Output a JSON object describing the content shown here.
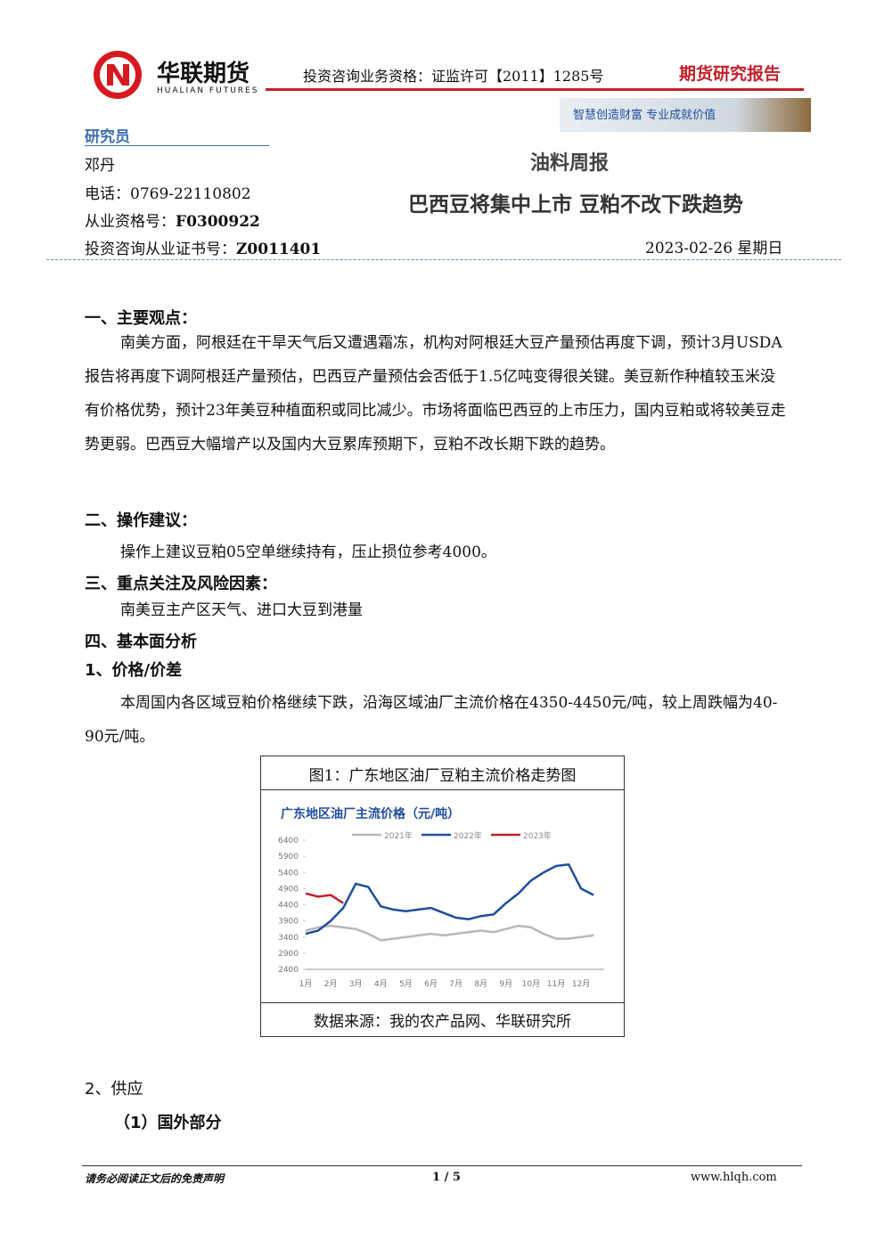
{
  "header": {
    "company": "华联期货",
    "company_en": "HUALIAN FUTURES",
    "qualification": "投资咨询业务资格：证监许可【2011】1285号",
    "report_type": "期货研究报告",
    "slogan": "智慧创造财富 专业成就价值"
  },
  "researcher": {
    "label": "研究员",
    "name": "邓丹",
    "phone": "电话：0769-22110802",
    "license_label": "从业资格号：",
    "license": "F0300922",
    "advisor_label": "投资咨询从业证书号：",
    "advisor": "Z0011401"
  },
  "report": {
    "category": "油料周报",
    "headline": "巴西豆将集中上市 豆粕不改下跌趋势",
    "date": "2023-02-26 星期日"
  },
  "sections": [
    {
      "heading": "一、主要观点：",
      "paragraphs": [
        "南美方面，阿根廷在干旱天气后又遭遇霜冻，机构对阿根廷大豆产量预估再度下调，预计3月USDA报告将再度下调阿根廷产量预估，巴西豆产量预估会否低于1.5亿吨变得很关键。美豆新作种植较玉米没有价格优势，预计23年美豆种植面积或同比减少。市场将面临巴西豆的上市压力，国内豆粕或将较美豆走势更弱。巴西豆大幅增产以及国内大豆累库预期下，豆粕不改长期下跌的趋势。"
      ]
    },
    {
      "heading": "二、操作建议：",
      "paragraphs": [
        "操作上建议豆粕05空单继续持有，压止损位参考4000。"
      ]
    },
    {
      "heading": "三、重点关注及风险因素：",
      "paragraphs": [
        "南美豆主产区天气、进口大豆到港量"
      ]
    },
    {
      "heading": "四、基本面分析",
      "paragraphs": []
    },
    {
      "heading": "1、价格/价差",
      "paragraphs": [
        "本周国内各区域豆粕价格继续下跌，沿海区域油厂主流价格在4350-4450元/吨，较上周跌幅为40-90元/吨。"
      ]
    }
  ],
  "figure": {
    "caption": "图1：广东地区油厂豆粕主流价格走势图",
    "source": "数据来源：我的农产品网、华联研究所"
  },
  "chart_data": {
    "type": "line",
    "title": "广东地区油厂主流价格（元/吨）",
    "categories": [
      "1月",
      null,
      "2月",
      null,
      "3月",
      null,
      "4月",
      null,
      "5月",
      null,
      "6月",
      null,
      "7月",
      null,
      "8月",
      null,
      "9月",
      null,
      "10月",
      null,
      "11月",
      null,
      "12月",
      null
    ],
    "series": [
      {
        "name": "2021年",
        "color": "#b8b8b8",
        "values": [
          3600,
          3700,
          3750,
          3700,
          3650,
          3500,
          3300,
          3350,
          3400,
          3450,
          3500,
          3450,
          3500,
          3550,
          3600,
          3550,
          3650,
          3750,
          3700,
          3500,
          3350,
          3350,
          3400,
          3450
        ]
      },
      {
        "name": "2022年",
        "color": "#1f4e9c",
        "values": [
          3500,
          3600,
          3900,
          4300,
          5050,
          4950,
          4350,
          4250,
          4200,
          4250,
          4300,
          4150,
          4000,
          3950,
          4050,
          4100,
          4450,
          4750,
          5150,
          5400,
          5600,
          5650,
          4900,
          4700
        ]
      },
      {
        "name": "2023年",
        "color": "#c0202a",
        "values": [
          4750,
          4650,
          4700,
          4450,
          null,
          null,
          null,
          null,
          null,
          null,
          null,
          null,
          null,
          null,
          null,
          null,
          null,
          null,
          null,
          null,
          null,
          null,
          null,
          null
        ]
      }
    ],
    "ylim": [
      2400,
      6400
    ],
    "yticks": [
      2400,
      2900,
      3400,
      3900,
      4400,
      4900,
      5400,
      5900,
      6400
    ],
    "grid": false
  },
  "after": [
    {
      "heading": "2、供应"
    },
    {
      "heading": "（1）国外部分"
    }
  ],
  "footer": {
    "disclaimer": "请务必阅读正文后的免责声明",
    "page": "1 / 5",
    "website": "www.hlqh.com"
  }
}
